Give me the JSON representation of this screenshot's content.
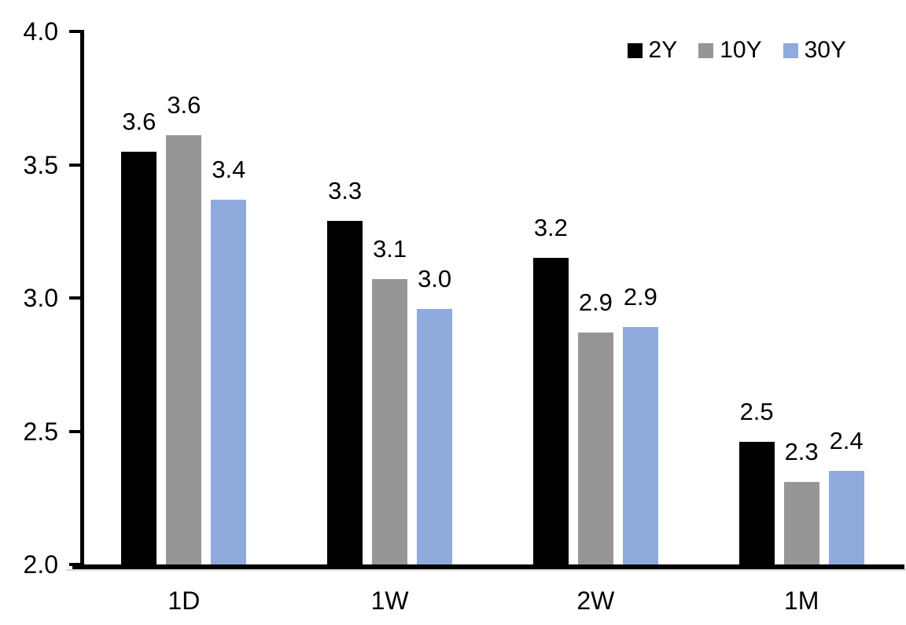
{
  "chart_data": {
    "type": "bar",
    "title": "",
    "xlabel": "",
    "ylabel": "",
    "categories": [
      "1D",
      "1W",
      "2W",
      "1M"
    ],
    "series": [
      {
        "name": "2Y",
        "color": "#000000",
        "values": [
          3.55,
          3.29,
          3.15,
          2.46
        ],
        "labels": [
          "3.6",
          "3.3",
          "3.2",
          "2.5"
        ]
      },
      {
        "name": "10Y",
        "color": "#969696",
        "values": [
          3.61,
          3.07,
          2.87,
          2.31
        ],
        "labels": [
          "3.6",
          "3.1",
          "2.9",
          "2.3"
        ]
      },
      {
        "name": "30Y",
        "color": "#8FAADC",
        "values": [
          3.37,
          2.96,
          2.89,
          2.35
        ],
        "labels": [
          "3.4",
          "3.0",
          "2.9",
          "2.4"
        ]
      }
    ],
    "ylim": [
      2.0,
      4.0
    ],
    "y_tick_step": 0.5,
    "y_ticks": [
      "2.0",
      "2.5",
      "3.0",
      "3.5",
      "4.0"
    ],
    "grid": false,
    "legend_position": "top-right",
    "axis_color": "#000000",
    "text_color": "#000000"
  }
}
